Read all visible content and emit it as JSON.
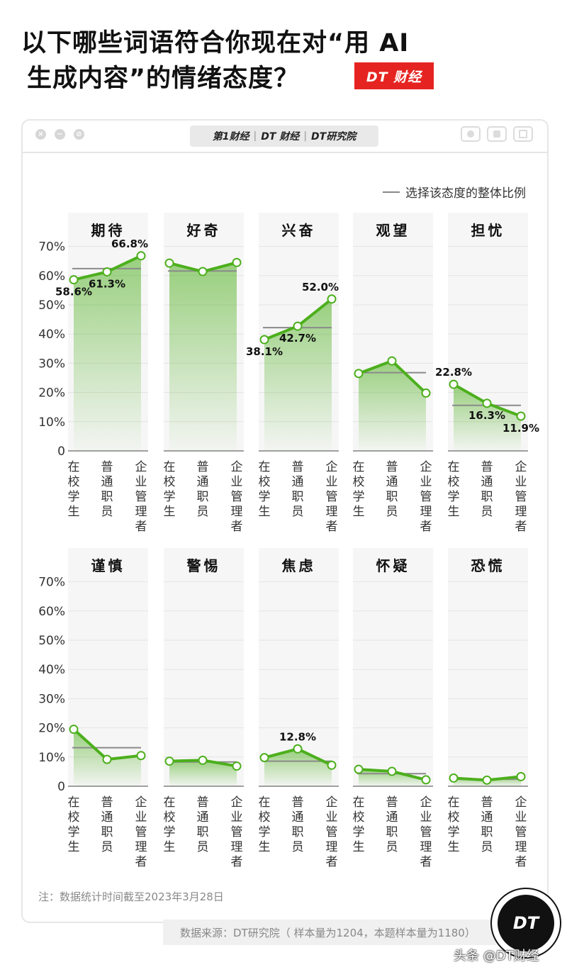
{
  "header": {
    "title_line1": "以下哪些词语符合你现在对“用 AI",
    "title_line2": "生成内容”的情绪态度？",
    "brand_badge": "DT 财经"
  },
  "window": {
    "logos": [
      "第1财经",
      "DT 财经",
      "DT研究院"
    ],
    "buttons_left": [
      "close-icon",
      "minimize-icon",
      "disabled-icon"
    ],
    "buttons_right": [
      "record-icon",
      "lock-icon",
      "window-icon"
    ]
  },
  "legend": {
    "label": "选择该态度的整体比例"
  },
  "chart_data": {
    "type": "line",
    "categories": [
      "在校学生",
      "普通职员",
      "企业管理者"
    ],
    "y_ticks": [
      "70%",
      "60%",
      "50%",
      "40%",
      "30%",
      "20%",
      "10%",
      "0"
    ],
    "ylim": [
      0,
      70
    ],
    "line_color": "#4caf1c",
    "overall_line_color": "#8a8a8a",
    "panels": [
      {
        "name": "期待",
        "values": [
          58.6,
          61.3,
          66.8
        ],
        "labels": [
          "58.6%",
          "61.3%",
          "66.8%"
        ],
        "overall": 62.4
      },
      {
        "name": "好奇",
        "values": [
          64.3,
          61.4,
          64.5
        ],
        "labels": [
          "",
          "",
          ""
        ],
        "overall": 61.6
      },
      {
        "name": "兴奋",
        "values": [
          38.1,
          42.7,
          52.0
        ],
        "labels": [
          "38.1%",
          "42.7%",
          "52.0%"
        ],
        "overall": 42.2
      },
      {
        "name": "观望",
        "values": [
          26.5,
          30.8,
          19.8
        ],
        "labels": [
          "",
          "",
          ""
        ],
        "overall": 26.8
      },
      {
        "name": "担忧",
        "values": [
          22.8,
          16.3,
          11.9
        ],
        "labels": [
          "22.8%",
          "16.3%",
          "11.9%"
        ],
        "overall": 15.6
      },
      {
        "name": "谨慎",
        "values": [
          19.5,
          9.2,
          10.5
        ],
        "labels": [
          "",
          "",
          ""
        ],
        "overall": 13.2
      },
      {
        "name": "警惕",
        "values": [
          8.6,
          8.9,
          6.9
        ],
        "labels": [
          "",
          "",
          ""
        ],
        "overall": 8.3
      },
      {
        "name": "焦虑",
        "values": [
          9.8,
          12.8,
          7.2
        ],
        "labels": [
          "",
          "12.8%",
          ""
        ],
        "overall": 8.6
      },
      {
        "name": "怀疑",
        "values": [
          5.8,
          5.1,
          2.2
        ],
        "labels": [
          "",
          "",
          ""
        ],
        "overall": 4.3
      },
      {
        "name": "恐慌",
        "values": [
          2.8,
          2.1,
          3.3
        ],
        "labels": [
          "",
          "",
          ""
        ],
        "overall": 2.4
      }
    ]
  },
  "footer": {
    "note": "注：数据统计时间截至2023年3月28日",
    "source": "数据来源：DT研究院（ 样本量为1204，本题样本量为1180）",
    "corner_logo": "DT",
    "watermark": "头条 @DT财经"
  }
}
